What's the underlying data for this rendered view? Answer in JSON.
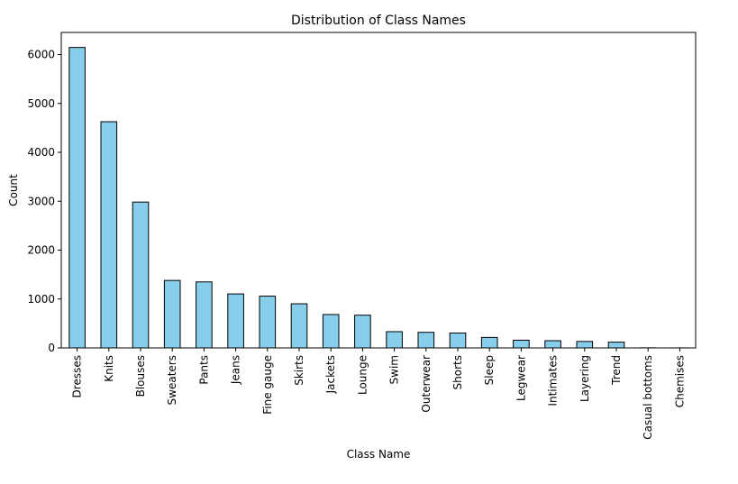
{
  "chart_data": {
    "type": "bar",
    "title": "Distribution of Class Names",
    "xlabel": "Class Name",
    "ylabel": "Count",
    "categories": [
      "Dresses",
      "Knits",
      "Blouses",
      "Sweaters",
      "Pants",
      "Jeans",
      "Fine gauge",
      "Skirts",
      "Jackets",
      "Lounge",
      "Swim",
      "Outerwear",
      "Shorts",
      "Sleep",
      "Legwear",
      "Intimates",
      "Layering",
      "Trend",
      "Casual bottoms",
      "Chemises"
    ],
    "values": [
      6145,
      4626,
      2983,
      1380,
      1350,
      1104,
      1059,
      903,
      683,
      669,
      332,
      319,
      304,
      214,
      158,
      147,
      132,
      118,
      2,
      1
    ],
    "yticks": [
      0,
      1000,
      2000,
      3000,
      4000,
      5000,
      6000
    ],
    "ylim": [
      0,
      6452
    ],
    "bar_color": "#87ceeb",
    "edge_color": "#000000",
    "grid": false,
    "legend": false
  }
}
